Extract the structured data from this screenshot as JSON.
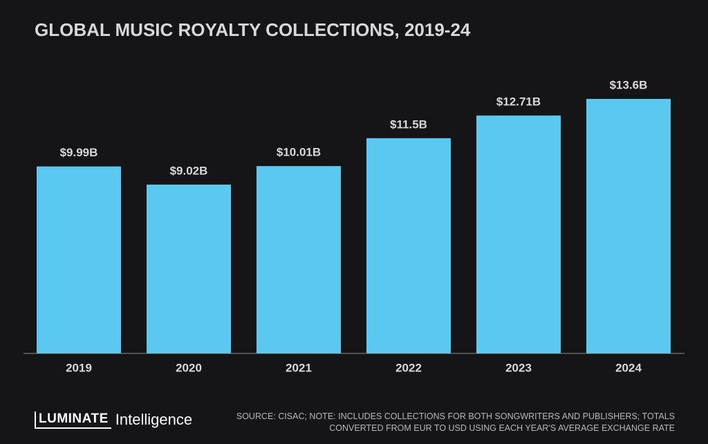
{
  "chart_data": {
    "type": "bar",
    "title": "GLOBAL MUSIC ROYALTY COLLECTIONS, 2019-24",
    "categories": [
      "2019",
      "2020",
      "2021",
      "2022",
      "2023",
      "2024"
    ],
    "values": [
      9.99,
      9.02,
      10.01,
      11.5,
      12.71,
      13.6
    ],
    "value_labels": [
      "$9.99B",
      "$9.02B",
      "$10.01B",
      "$11.5B",
      "$12.71B",
      "$13.6B"
    ],
    "color": "#5bc8f0",
    "source": "SOURCE: CISAC; NOTE: INCLUDES COLLECTIONS FOR BOTH SONGWRITERS AND PUBLISHERS; TOTALS CONVERTED FROM EUR TO USD USING EACH YEAR'S AVERAGE EXCHANGE RATE"
  },
  "branding": {
    "brand": "LUMINATE",
    "product": "Intelligence"
  }
}
